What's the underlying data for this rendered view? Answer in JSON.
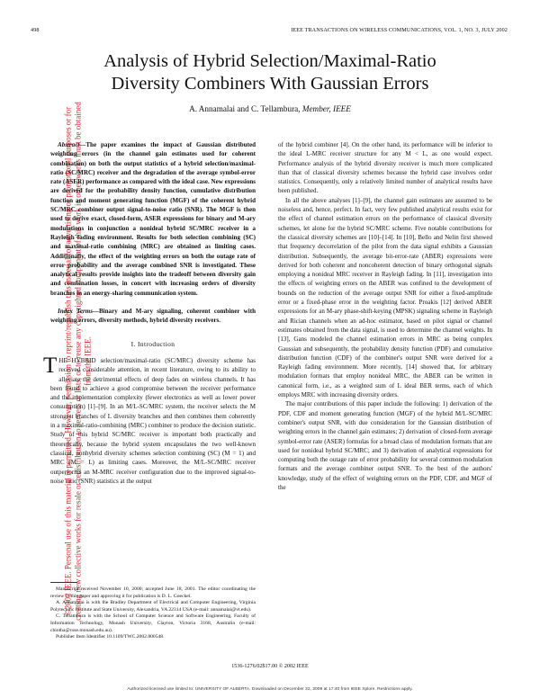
{
  "header": {
    "page_number": "498",
    "journal": "IEEE TRANSACTIONS ON WIRELESS COMMUNICATIONS, VOL. 1, NO. 3, JULY 2002"
  },
  "side_notice": "©2002 IEEE. Personal use of this material is permitted. However, permission to reprint/republish this material for advertising or promotional purposes or for creating new collective works for resale or redistribution to servers or lists, or to reuse any copyrighted component of this work in other works must be obtained from the IEEE.",
  "title_line1": "Analysis of Hybrid Selection/Maximal-Ratio",
  "title_line2": "Diversity Combiners With Gaussian Errors",
  "authors": {
    "names": "A. Annamalai and C. Tellambura, ",
    "role": "Member, IEEE"
  },
  "abstract": {
    "lead": "Abstract—",
    "text": "The paper examines the impact of Gaussian distributed weighting errors (in the channel gain estimates used for coherent combination) on both the output statistics of a hybrid selection/maximal-ratio (SC/MRC) receiver and the degradation of the average symbol-error rate (ASER) performance as compared with the ideal case. New expressions are derived for the probability density function, cumulative distribution function and moment generating function (MGF) of the coherent hybrid SC/MRC combiner output signal-to-noise ratio (SNR). The MGF is then used to derive exact, closed-form, ASER expressions for binary and M-ary modulations in conjunction a nonideal hybrid SC/MRC receiver in a Rayleigh fading environment. Results for both selection combining (SC) and maximal-ratio combining (MRC) are obtained as limiting cases. Additionally, the effect of the weighting errors on both the outage rate of error probability and the average combined SNR is investigated. These analytical results provide insights into the tradeoff between diversity gain and combination losses, in concert with increasing orders of diversity branches in an energy-sharing communication system."
  },
  "index_terms": {
    "lead": "Index Terms—",
    "text": "Binary and M-ary signaling, coherent combiner with weighting errors, diversity methods, hybrid diversity receivers."
  },
  "section_heading": "I. Introduction",
  "intro": {
    "drop_cap": "T",
    "p1": "HE HYBRID selection/maximal-ratio (SC/MRC) diversity scheme has received considerable attention, in recent literature, owing to its ability to alleviate the detrimental effects of deep fades on wireless channels. It has been found to achieve a good compromise between the receiver performance and the implementation complexity (fewer electronics as well as lower power consumption) [1]–[9]. In an M/L-SC/MRC system, the receiver selects the M strongest branches of L diversity branches and then combines them coherently in a maximal-ratio-combining (MRC) combiner to produce the decision statistic. Study of this hybrid SC/MRC receiver is important both practically and theoretically, because the hybrid system encapsulates the two well-known classical, nonhybrid diversity schemes selection combining (SC) (M = 1) and MRC (M = L) as limiting cases. Moreover, the M/L-SC/MRC receiver outperforms an M-MRC receiver configuration due to the improved signal-to-noise ratio (SNR) statistics at the output"
  },
  "right_column": {
    "p1": "of the hybrid combiner [4]. On the other hand, its performance will be inferior to the ideal L-MRC receiver structure for any M < L, as one would expect. Performance analysis of the hybrid diversity receiver is much more complicated than that of classical diversity schemes because the hybrid case involves order statistics. Consequently, only a relatively limited number of analytical results have been published.",
    "p2": "In all the above analyses [1]–[9], the channel gain estimates are assumed to be noiseless and, hence, perfect. In fact, very few published analytical results exist for the effect of channel estimation errors on the performance of classical diversity schemes, let alone for the hybrid SC/MRC scheme. Five notable contributions for the classical diversity schemes are [10]–[14]. In [10], Bello and Nelin first showed that frequency decorrelation of the pilot from the data signal exhibits a Gaussian distribution. Subsequently, the average bit-error-rate (ABER) expressions were derived for both coherent and noncoherent detection of binary orthogonal signals employing a nonideal MRC receiver in Rayleigh fading. In [11], investigation into the effects of weighting errors on the ABER was confined to the development of bounds on the reduction of the average output SNR for either a fixed-amplitude error or a fixed-phase error in the weighting factor. Proakis [12] derived ABER expressions for an M-ary phase-shift-keying (MPSK) signaling scheme in Rayleigh and Rician channels when an ad-hoc estimator, based on pilot signal or channel estimates obtained from the data signal, is used to determine the channel weights. In [13], Gans modeled the channel estimation errors in MRC as being complex Gaussian and subsequently, the probability density function (PDF) and cumulative distribution function (CDF) of the combiner's output SNR were derived for a Rayleigh fading environment. More recently, [14] showed that, for arbitrary modulation formats that employ nonideal MRC, the ABER can be written in canonical form, i.e., as a weighted sum of L ideal BER terms, each of which employs MRC with increasing diversity orders.",
    "p3": "The major contributions of this paper include the following: 1) derivation of the PDF, CDF and moment generating function (MGF) of the hybrid M/L-SC/MRC combiner's output SNR, with due consideration for the Gaussian distribution of weighting errors in the channel gain estimates; 2) derivation of closed-form average symbol-error rate (ASER) formulas for a broad class of modulation formats that are used for nonideal hybrid SC/MRC; and 3) derivation of analytical expressions for computing both the outage rate of error probability for several common modulation formats and the average combiner output SNR. To the best of the authors' knowledge, study of the effect of weighting errors on the PDF, CDF, and MGF of the"
  },
  "footnotes": [
    "Manuscript received November 10, 2000; accepted June 18, 2001. The editor coordinating the review of this paper and approving it for publication is D. L. Goeckel.",
    "A. Annamalai is with the Bradley Department of Electrical and Computer Engineering, Virginia Polytechnic Institute and State University, Alexandria, VA 22314 USA (e-mail: annamalai@vt.edu).",
    "C. Tellambura is with the School of Computer Science and Software Engineering, Faculty of Information Technology, Monash University, Clayton, Victoria 3168, Australia (e-mail: chintha@csse.monash.edu.au).",
    "Publisher Item Identifier 10.1109/TWC.2002.800548."
  ],
  "copyright_line": "1536-1276/02$17.00 © 2002 IEEE",
  "download_notice": "Authorized licensed use limited to: UNIVERSITY OF ALBERTA. Downloaded on December 22, 2009 at 17:40 from IEEE Xplore. Restrictions apply.",
  "colors": {
    "side_notice": "#dd2222",
    "link": "#1a4fb5"
  }
}
